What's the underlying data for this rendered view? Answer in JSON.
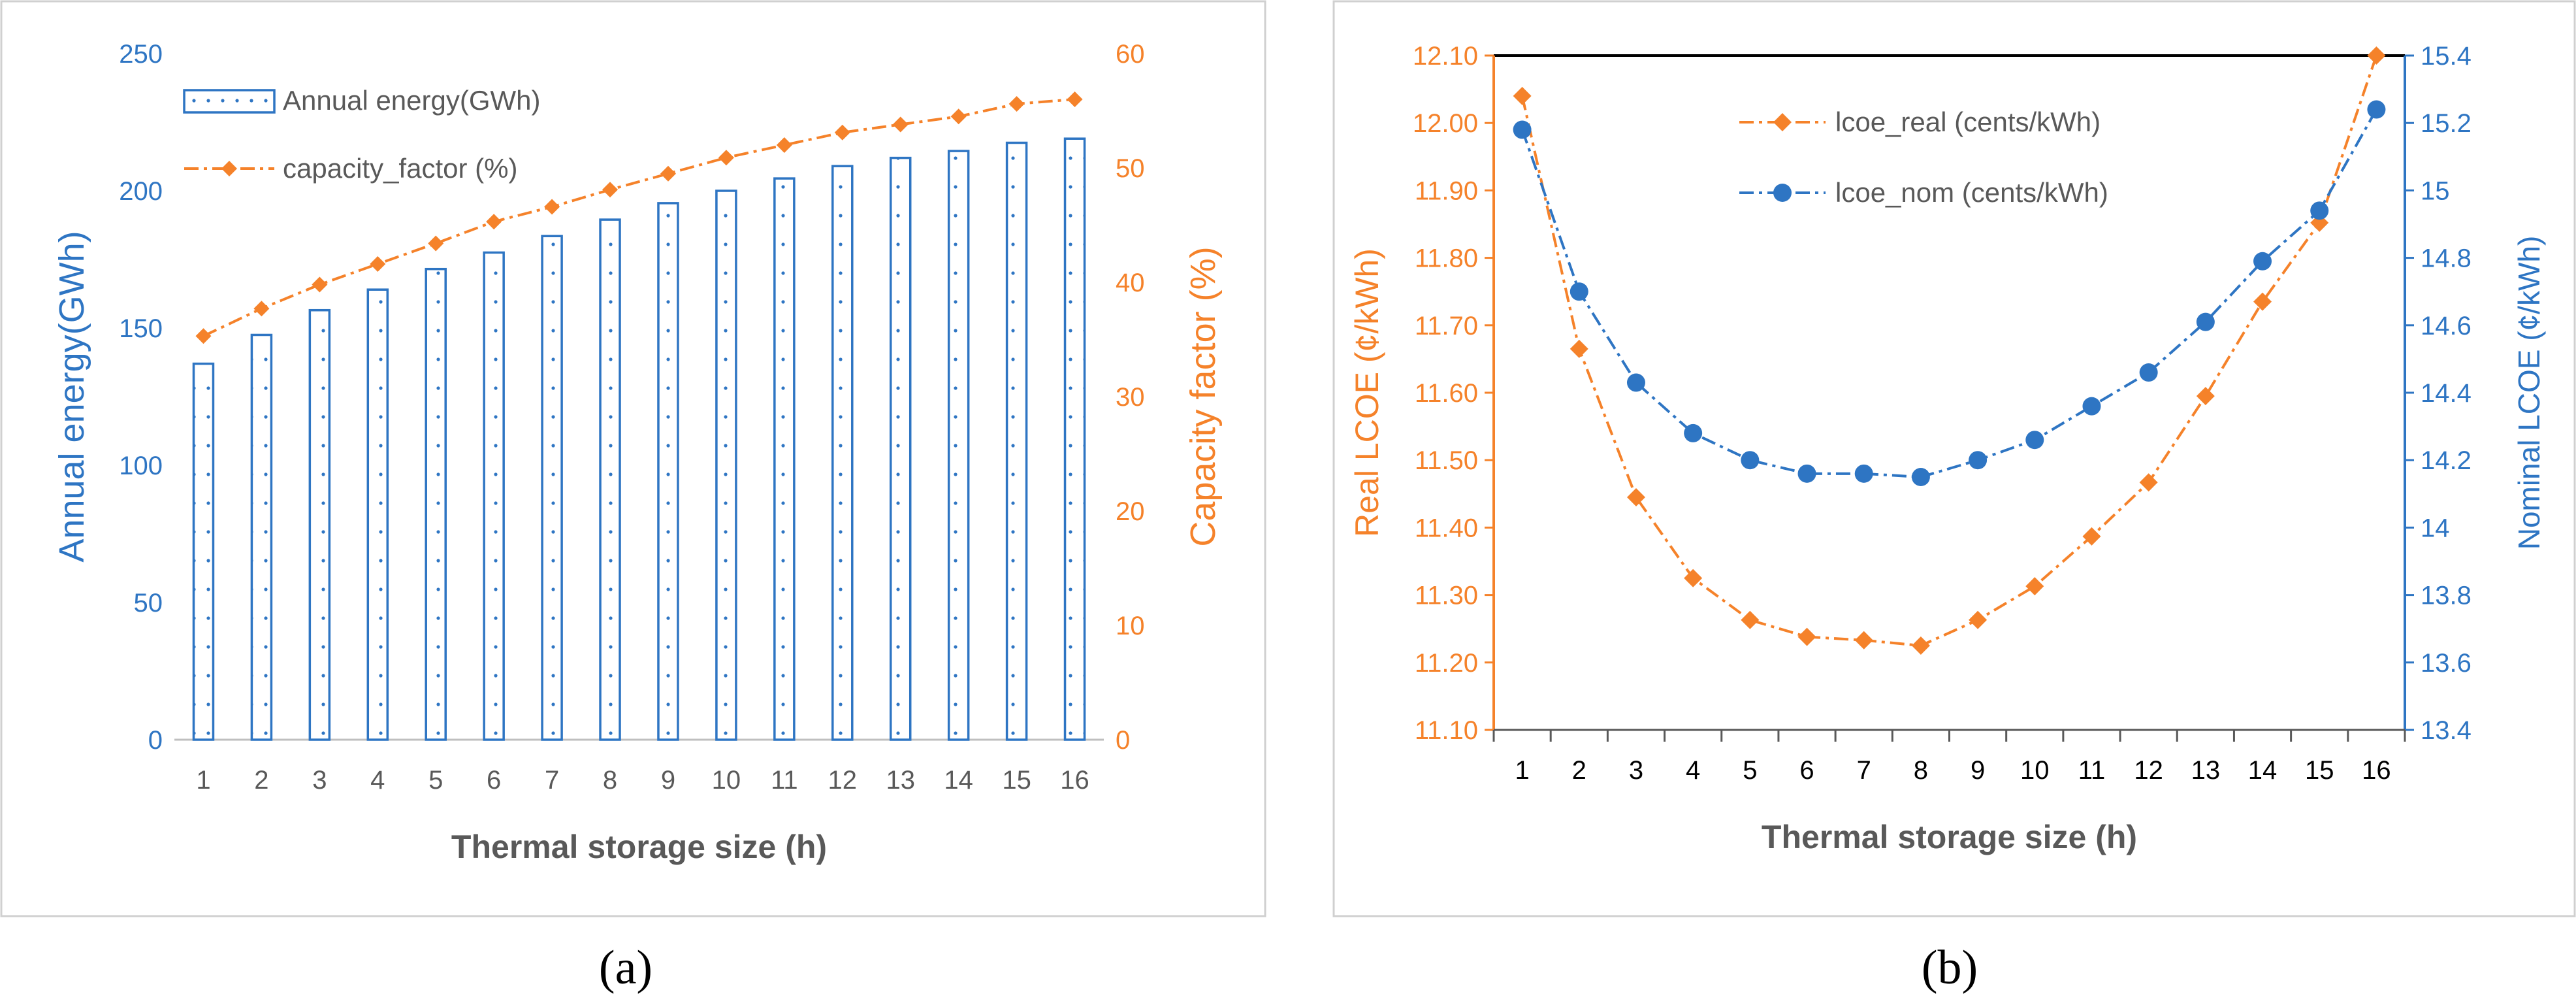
{
  "colors": {
    "blue": "#2E75C3",
    "orange": "#F5822A",
    "frame": "#D0D0D0",
    "text": "#595959",
    "black": "#000000"
  },
  "chart_data": [
    {
      "panel": "a",
      "panel_label": "(a)",
      "type": "bar+line",
      "xlabel": "Thermal storage size (h)",
      "ylabel": "Annual energy(GWh)",
      "y2label": "Capacity factor (%)",
      "categories": [
        "1",
        "2",
        "3",
        "4",
        "5",
        "6",
        "7",
        "8",
        "9",
        "10",
        "11",
        "12",
        "13",
        "14",
        "15",
        "16"
      ],
      "ylim": [
        0,
        250
      ],
      "yticks": [
        "0",
        "50",
        "100",
        "150",
        "200",
        "250"
      ],
      "y2lim": [
        0,
        60
      ],
      "y2ticks": [
        "0",
        "10",
        "20",
        "30",
        "40",
        "50",
        "60"
      ],
      "legend_position": "top-left",
      "series": [
        {
          "name": "Annual energy(GWh)",
          "kind": "bar",
          "axis": "left",
          "values": [
            137,
            147.5,
            156.5,
            164,
            171.5,
            177.5,
            183.5,
            189.5,
            195.5,
            200,
            204.5,
            209,
            212,
            214.5,
            217.5,
            219
          ]
        },
        {
          "name": "capacity_factor (%)",
          "kind": "line",
          "axis": "right",
          "values": [
            35.3,
            37.7,
            39.8,
            41.6,
            43.4,
            45.3,
            46.6,
            48.1,
            49.5,
            50.9,
            52.0,
            53.1,
            53.8,
            54.5,
            55.6,
            56.0
          ]
        }
      ]
    },
    {
      "panel": "b",
      "panel_label": "(b)",
      "type": "line",
      "xlabel": "Thermal storage size (h)",
      "ylabel": "Real LCOE (¢/kWh)",
      "y2label": "Nominal LCOE (¢/kWh)",
      "categories": [
        "1",
        "2",
        "3",
        "4",
        "5",
        "6",
        "7",
        "8",
        "9",
        "10",
        "11",
        "12",
        "13",
        "14",
        "15",
        "16"
      ],
      "ylim": [
        11.1,
        12.1
      ],
      "yticks": [
        "11.10",
        "11.20",
        "11.30",
        "11.40",
        "11.50",
        "11.60",
        "11.70",
        "11.80",
        "11.90",
        "12.00",
        "12.10"
      ],
      "y2lim": [
        13.4,
        15.4
      ],
      "y2ticks": [
        "13.4",
        "13.6",
        "13.8",
        "14",
        "14.2",
        "14.4",
        "14.6",
        "14.8",
        "15",
        "15.2",
        "15.4"
      ],
      "legend_position": "top-center",
      "series": [
        {
          "name": "lcoe_real (cents/kWh)",
          "axis": "left",
          "values": [
            12.04,
            11.665,
            11.445,
            11.325,
            11.263,
            11.238,
            11.233,
            11.225,
            11.263,
            11.313,
            11.387,
            11.467,
            11.595,
            11.735,
            11.852,
            12.1
          ]
        },
        {
          "name": "lcoe_nom (cents/kWh)",
          "axis": "right",
          "values": [
            15.18,
            14.7,
            14.43,
            14.28,
            14.2,
            14.16,
            14.16,
            14.15,
            14.2,
            14.26,
            14.36,
            14.46,
            14.61,
            14.79,
            14.94,
            15.24
          ]
        }
      ]
    }
  ]
}
